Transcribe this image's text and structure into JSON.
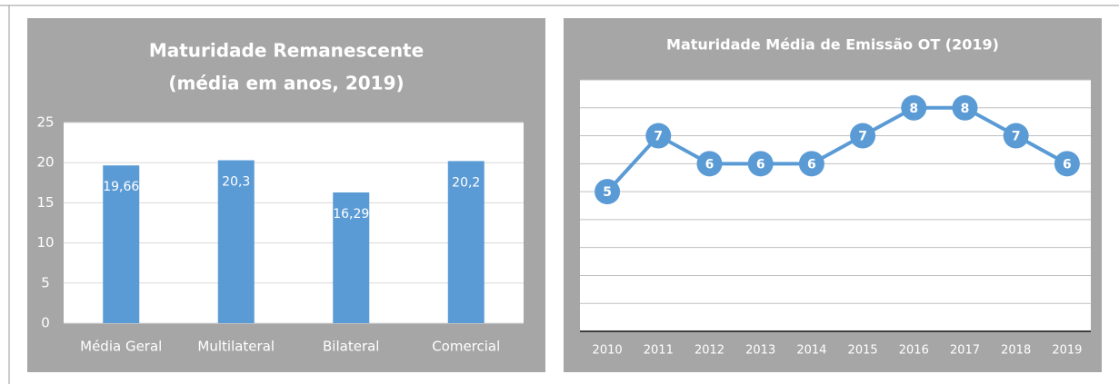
{
  "chart_data": [
    {
      "type": "bar",
      "title": "Maturidade Remanescente",
      "subtitle": "(média em anos, 2019)",
      "categories": [
        "Média Geral",
        "Multilateral",
        "Bilateral",
        "Comercial"
      ],
      "values": [
        19.66,
        20.3,
        16.29,
        20.2
      ],
      "value_labels": [
        "19,66",
        "20,3",
        "16,29",
        "20,2"
      ],
      "color": "#5b9bd5",
      "ylim": [
        0,
        25
      ],
      "yticks": [
        0,
        5,
        10,
        15,
        20,
        25
      ],
      "grid": true
    },
    {
      "type": "line",
      "title": "Maturidade Média de Emissão OT (2019)",
      "categories": [
        "2010",
        "2011",
        "2012",
        "2013",
        "2014",
        "2015",
        "2016",
        "2017",
        "2018",
        "2019"
      ],
      "values": [
        5,
        7,
        6,
        6,
        6,
        7,
        8,
        8,
        7,
        6
      ],
      "color": "#5b9bd5",
      "ylim": [
        0,
        9
      ],
      "yticks": [
        0,
        1,
        2,
        3,
        4,
        5,
        6,
        7,
        8,
        9
      ],
      "grid": true
    }
  ]
}
